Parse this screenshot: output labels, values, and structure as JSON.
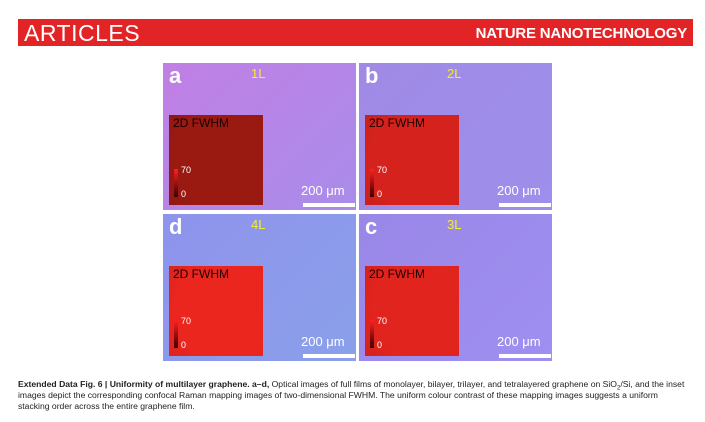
{
  "header": {
    "section": "ARTICLES",
    "journal": "NATURE NANOTECHNOLOGY"
  },
  "figure": {
    "panels": [
      {
        "letter": "a",
        "layer": "1L",
        "inset_label": "2D FWHM",
        "colorbar_max": "70",
        "colorbar_min": "0",
        "scale_bar": "200 μm",
        "bg_start": "#c17fe4",
        "bg_end": "#a98cea",
        "inset_color": "#9a1a12"
      },
      {
        "letter": "b",
        "layer": "2L",
        "inset_label": "2D FWHM",
        "colorbar_max": "70",
        "colorbar_min": "0",
        "scale_bar": "200 μm",
        "bg_start": "#a08ae6",
        "bg_end": "#9d8feb",
        "inset_color": "#d6221c"
      },
      {
        "letter": "d",
        "layer": "4L",
        "inset_label": "2D FWHM",
        "colorbar_max": "70",
        "colorbar_min": "0",
        "scale_bar": "200 μm",
        "bg_start": "#8f93ec",
        "bg_end": "#8aa0ea",
        "inset_color": "#ea261f"
      },
      {
        "letter": "c",
        "layer": "3L",
        "inset_label": "2D FWHM",
        "colorbar_max": "70",
        "colorbar_min": "0",
        "scale_bar": "200 μm",
        "bg_start": "#9a87e8",
        "bg_end": "#9e8ff0",
        "inset_color": "#e1241d"
      }
    ]
  },
  "caption": {
    "figure_label": "Extended Data Fig. 6 | Uniformity of multilayer graphene.",
    "panel_ref": "a–d,",
    "text_1": "Optical images of full films of monolayer, bilayer, trilayer, and tetralayered graphene on SiO",
    "subscript": "2",
    "text_2": "/Si, and the inset images depict the corresponding confocal Raman mapping images of two-dimensional FWHM. The uniform colour contrast of these mapping images suggests a uniform stacking order across the entire graphene film."
  }
}
